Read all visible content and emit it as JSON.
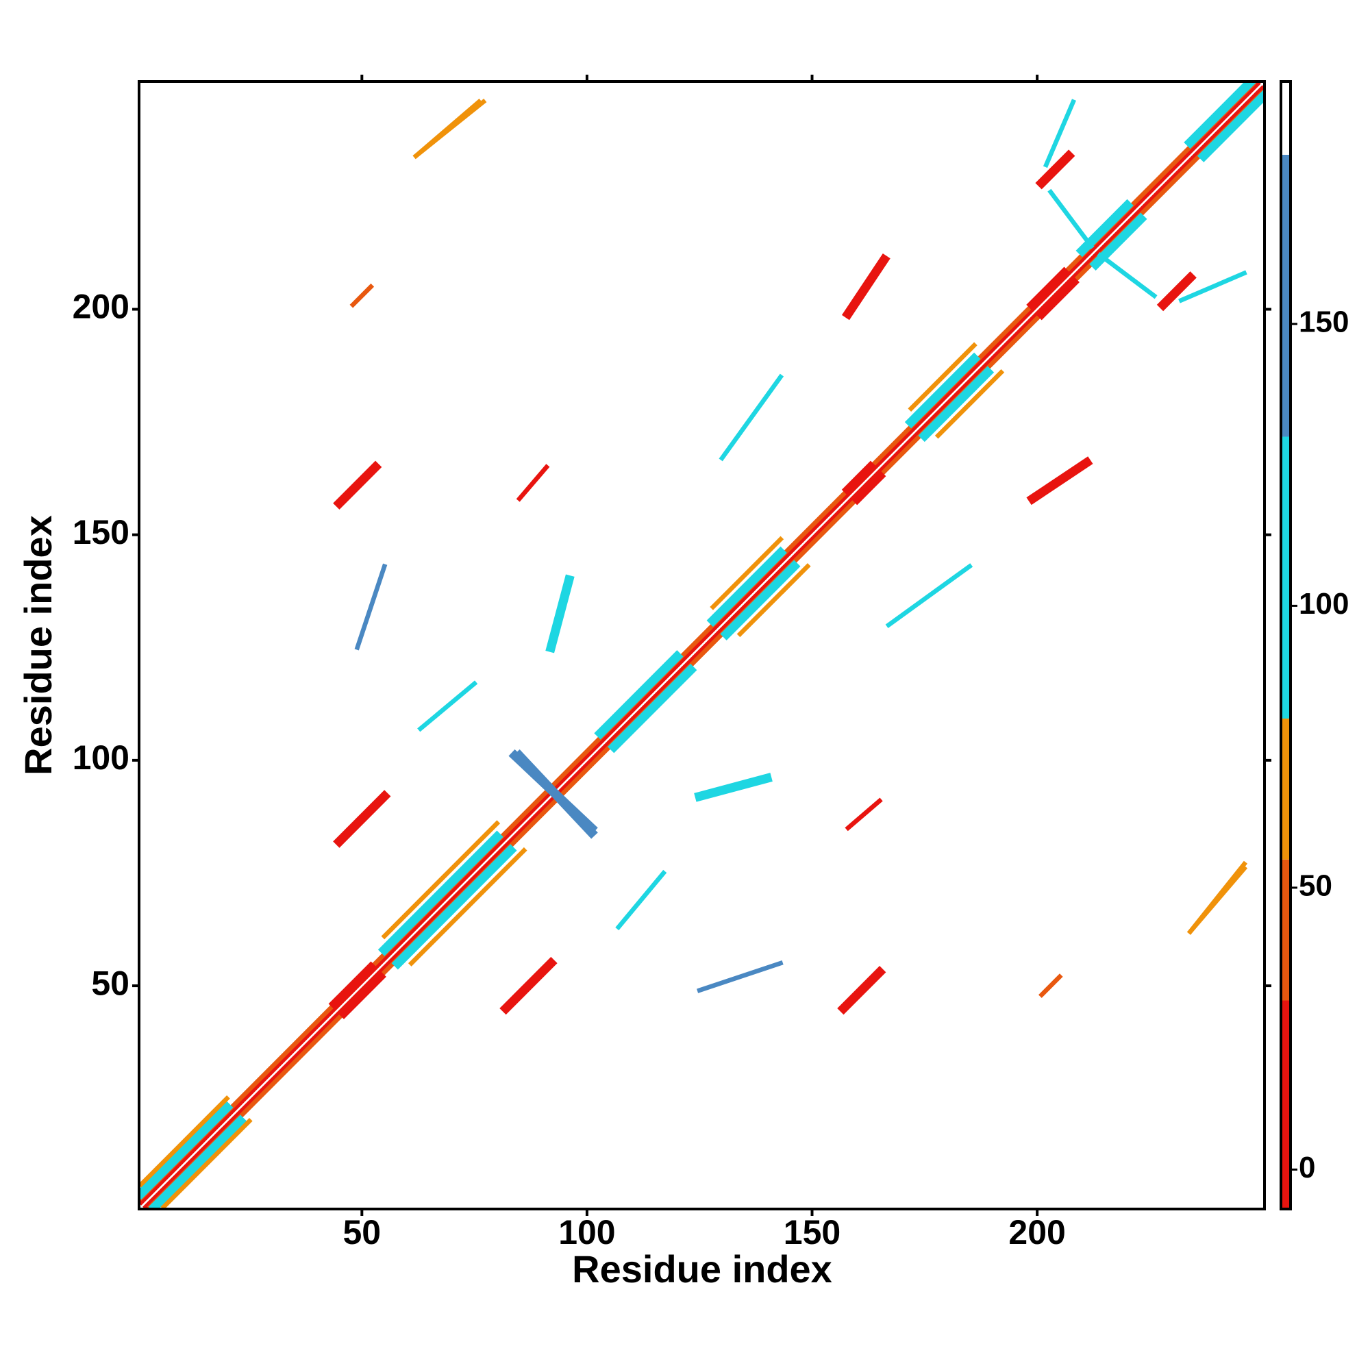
{
  "chart_data": {
    "type": "heatmap",
    "symmetric": true,
    "xlabel": "Residue index",
    "ylabel": "Residue index",
    "xlim": [
      0.5,
      250.5
    ],
    "ylim": [
      0.5,
      250.5
    ],
    "xticks": [
      50,
      100,
      150,
      200
    ],
    "yticks": [
      50,
      100,
      150,
      200
    ],
    "colorbar": {
      "lim": [
        -7,
        193
      ],
      "ticks": [
        0,
        50,
        100,
        150
      ],
      "bins": [
        -7,
        30,
        55,
        80,
        130,
        180,
        193
      ],
      "colors": [
        "#e8140f",
        "#e8580f",
        "#f0920a",
        "#1ed6e2",
        "#4a88c2",
        "#ffffff"
      ]
    },
    "features": [
      {
        "x": [
          1,
          249
        ],
        "y": [
          2,
          250
        ],
        "value": 5,
        "width": 1
      },
      {
        "x": [
          1,
          248
        ],
        "y": [
          3,
          250
        ],
        "value": 45,
        "width": 1
      },
      {
        "x": [
          1,
          20
        ],
        "y": [
          4,
          23
        ],
        "value": 100,
        "width": 2
      },
      {
        "x": [
          1,
          20
        ],
        "y": [
          6,
          25
        ],
        "value": 65,
        "width": 1
      },
      {
        "x": [
          44,
          52
        ],
        "y": [
          46,
          54
        ],
        "value": 10,
        "width": 2
      },
      {
        "x": [
          55,
          80
        ],
        "y": [
          58,
          83
        ],
        "value": 100,
        "width": 2
      },
      {
        "x": [
          55,
          80
        ],
        "y": [
          61,
          86
        ],
        "value": 65,
        "width": 1
      },
      {
        "x": [
          103,
          120
        ],
        "y": [
          106,
          123
        ],
        "value": 100,
        "width": 2
      },
      {
        "x": [
          128,
          143
        ],
        "y": [
          131,
          146
        ],
        "value": 100,
        "width": 2
      },
      {
        "x": [
          128,
          143
        ],
        "y": [
          134,
          149
        ],
        "value": 65,
        "width": 1
      },
      {
        "x": [
          158,
          163
        ],
        "y": [
          160,
          165
        ],
        "value": 10,
        "width": 2
      },
      {
        "x": [
          172,
          186
        ],
        "y": [
          175,
          189
        ],
        "value": 100,
        "width": 2
      },
      {
        "x": [
          172,
          186
        ],
        "y": [
          178,
          192
        ],
        "value": 65,
        "width": 1
      },
      {
        "x": [
          199,
          206
        ],
        "y": [
          201,
          208
        ],
        "value": 10,
        "width": 2
      },
      {
        "x": [
          210,
          220
        ],
        "y": [
          213,
          223
        ],
        "value": 100,
        "width": 2
      },
      {
        "x": [
          234,
          249
        ],
        "y": [
          237,
          252
        ],
        "value": 100,
        "width": 2
      },
      {
        "x": [
          45,
          55
        ],
        "y": [
          82,
          92
        ],
        "value": 20,
        "width": 2
      },
      {
        "x": [
          45,
          53
        ],
        "y": [
          157,
          165
        ],
        "value": 20,
        "width": 2
      },
      {
        "x": [
          158,
          166
        ],
        "y": [
          199,
          211
        ],
        "value": 20,
        "width": 2
      },
      {
        "x": [
          201,
          207
        ],
        "y": [
          228,
          234
        ],
        "value": 20,
        "width": 2
      },
      {
        "x": [
          85,
          91
        ],
        "y": [
          158,
          165
        ],
        "value": 15,
        "width": 1
      },
      {
        "x": [
          48,
          52
        ],
        "y": [
          201,
          205
        ],
        "value": 45,
        "width": 1
      },
      {
        "x": [
          84,
          101
        ],
        "y": [
          101,
          85
        ],
        "value": 170,
        "width": 2
      },
      {
        "x": [
          62,
          76
        ],
        "y": [
          234,
          246
        ],
        "value": 60,
        "width": 1
      },
      {
        "x": [
          167,
          185
        ],
        "y": [
          130,
          143
        ],
        "value": 100,
        "width": 1
      },
      {
        "x": [
          125,
          140
        ],
        "y": [
          92,
          96
        ],
        "value": 100,
        "width": 2
      },
      {
        "x": [
          49,
          55
        ],
        "y": [
          125,
          143
        ],
        "value": 150,
        "width": 1
      },
      {
        "x": [
          63,
          75
        ],
        "y": [
          107,
          117
        ],
        "value": 100,
        "width": 1
      },
      {
        "x": [
          232,
          246
        ],
        "y": [
          202,
          208
        ],
        "value": 100,
        "width": 1
      },
      {
        "x": [
          203,
          212
        ],
        "y": [
          226,
          214
        ],
        "value": 100,
        "width": 1
      },
      {
        "x": [
          234,
          246
        ],
        "y": [
          62,
          77
        ],
        "value": 60,
        "width": 1
      }
    ]
  }
}
